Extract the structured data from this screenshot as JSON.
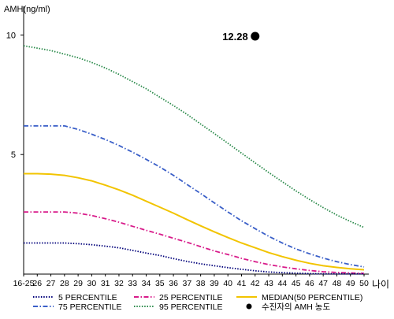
{
  "chart_data": {
    "type": "line",
    "ylabel": "AMH(ng/ml)",
    "xlabel": "나이",
    "ylim": [
      0,
      11.2
    ],
    "yticks": [
      5,
      10
    ],
    "categories": [
      "16-25",
      "26",
      "27",
      "28",
      "29",
      "30",
      "31",
      "32",
      "33",
      "34",
      "35",
      "36",
      "37",
      "38",
      "39",
      "40",
      "41",
      "42",
      "43",
      "44",
      "45",
      "46",
      "47",
      "48",
      "49",
      "50"
    ],
    "grid": false,
    "legend_position": "bottom",
    "series": [
      {
        "name": "5 PERCENTILE",
        "color": "#00007a",
        "style": "dotted",
        "values": [
          1.3,
          1.3,
          1.3,
          1.3,
          1.27,
          1.23,
          1.17,
          1.1,
          0.99,
          0.88,
          0.78,
          0.65,
          0.53,
          0.43,
          0.35,
          0.27,
          0.2,
          0.14,
          0.09,
          0.06,
          0.04,
          0.02,
          0.01,
          0.01,
          0.01,
          0.01
        ]
      },
      {
        "name": "25 PERCENTILE",
        "color": "#d81b8a",
        "style": "dashdot",
        "values": [
          2.6,
          2.6,
          2.6,
          2.6,
          2.55,
          2.45,
          2.32,
          2.17,
          2.0,
          1.83,
          1.67,
          1.5,
          1.33,
          1.15,
          0.97,
          0.82,
          0.66,
          0.52,
          0.4,
          0.3,
          0.22,
          0.15,
          0.1,
          0.07,
          0.05,
          0.03
        ]
      },
      {
        "name": "MEDIAN(50 PERCENTILE)",
        "color": "#f2c400",
        "style": "solid",
        "values": [
          4.2,
          4.2,
          4.18,
          4.13,
          4.03,
          3.9,
          3.72,
          3.52,
          3.3,
          3.05,
          2.8,
          2.55,
          2.28,
          2.02,
          1.77,
          1.53,
          1.3,
          1.1,
          0.9,
          0.73,
          0.58,
          0.45,
          0.35,
          0.28,
          0.22,
          0.18
        ]
      },
      {
        "name": "75 PERCENTILE",
        "color": "#3a5fc8",
        "style": "dashdot",
        "values": [
          6.2,
          6.2,
          6.2,
          6.2,
          6.05,
          5.85,
          5.63,
          5.38,
          5.1,
          4.8,
          4.48,
          4.13,
          3.75,
          3.37,
          2.98,
          2.6,
          2.23,
          1.9,
          1.58,
          1.3,
          1.05,
          0.85,
          0.67,
          0.52,
          0.4,
          0.3
        ]
      },
      {
        "name": "95 PERCENTILE",
        "color": "#2a8a4a",
        "style": "dotted",
        "values": [
          9.55,
          9.45,
          9.35,
          9.2,
          9.05,
          8.85,
          8.62,
          8.35,
          8.05,
          7.75,
          7.4,
          7.05,
          6.68,
          6.28,
          5.88,
          5.47,
          5.06,
          4.65,
          4.25,
          3.86,
          3.48,
          3.12,
          2.78,
          2.47,
          2.2,
          1.95
        ]
      }
    ],
    "point": {
      "label": "12.28",
      "legend_label": "수진자의 AMH 농도",
      "x": "42",
      "y": 12.28,
      "color": "#000000"
    }
  }
}
